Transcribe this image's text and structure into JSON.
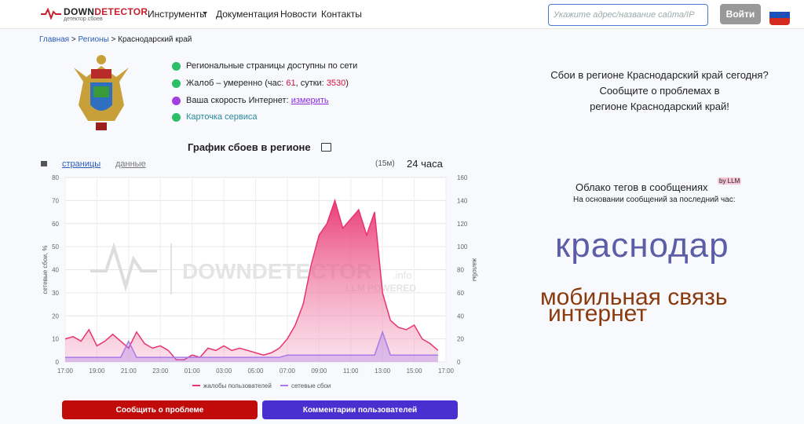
{
  "header": {
    "logo": {
      "part1": "DOWN",
      "part2": "DETECTOR",
      "tagline": "детектор сбоев"
    },
    "nav": [
      "Инструменты",
      "Документация",
      "Новости",
      "Контакты"
    ],
    "search_placeholder": "Укажите адрес/название сайта/IP",
    "login": "Войти"
  },
  "breadcrumb": [
    "Главная",
    "Регионы",
    "Краснодарский край"
  ],
  "status": {
    "available": "Региональные страницы доступны по сети",
    "complaints": {
      "prefix": "Жалоб – умеренно (час: ",
      "hour": 61,
      "mid": ", сутки: ",
      "day": 3530,
      "suffix": ")"
    },
    "speed": {
      "text": "Ваша скорость Интернет:",
      "link": "измерить"
    },
    "card": "Карточка сервиса"
  },
  "chart_panel": {
    "title": "График сбоев в регионе",
    "tabs": [
      "страницы",
      "данные"
    ],
    "interval": "(15м)",
    "range": "24 часа"
  },
  "chart_data": {
    "type": "line",
    "watermark": {
      "brand": "DOWNDETECTOR",
      "suffix": ".info",
      "tag": "LLM POWERED"
    },
    "ylabel": "сетевые сбои, %",
    "y2label": "жалобы",
    "x": [
      0,
      0.5,
      1,
      1.5,
      2,
      2.5,
      3,
      3.5,
      4,
      4.5,
      5,
      5.5,
      6,
      6.5,
      7,
      7.5,
      8,
      8.5,
      9,
      9.5,
      10,
      10.5,
      11,
      11.5,
      12,
      12.5,
      13,
      13.5,
      14,
      14.5,
      15,
      15.5,
      16,
      16.5,
      17,
      17.5,
      18,
      18.5,
      19,
      19.5,
      20,
      20.5,
      21,
      21.5,
      22,
      22.5,
      23,
      23.5
    ],
    "xlim": [
      0,
      24
    ],
    "xticks": [
      {
        "value": 0,
        "label": "17:00"
      },
      {
        "value": 2,
        "label": "19:00"
      },
      {
        "value": 4,
        "label": "21:00"
      },
      {
        "value": 6,
        "label": "23:00"
      },
      {
        "value": 8,
        "label": "01:00"
      },
      {
        "value": 10,
        "label": "03:00"
      },
      {
        "value": 12,
        "label": "05:00"
      },
      {
        "value": 14,
        "label": "07:00"
      },
      {
        "value": 16,
        "label": "09:00"
      },
      {
        "value": 18,
        "label": "11:00"
      },
      {
        "value": 20,
        "label": "13:00"
      },
      {
        "value": 22,
        "label": "15:00"
      },
      {
        "value": 24,
        "label": "17:00"
      }
    ],
    "ylim": [
      0,
      80
    ],
    "yticks": [
      0,
      10,
      20,
      30,
      40,
      50,
      60,
      70,
      80
    ],
    "y2lim": [
      0,
      160
    ],
    "y2ticks": [
      0,
      20,
      40,
      60,
      80,
      100,
      120,
      140,
      160
    ],
    "grid": true,
    "series": [
      {
        "name": "жалобы пользователей",
        "color": "#e8336f",
        "axis": "y2",
        "values": [
          20,
          22,
          18,
          28,
          14,
          18,
          24,
          18,
          12,
          26,
          16,
          12,
          14,
          10,
          2,
          2,
          6,
          4,
          12,
          10,
          14,
          10,
          12,
          10,
          8,
          6,
          8,
          12,
          20,
          32,
          50,
          84,
          110,
          120,
          140,
          116,
          124,
          132,
          110,
          130,
          60,
          36,
          30,
          28,
          32,
          20,
          16,
          10
        ]
      },
      {
        "name": "сетевые сбои",
        "color": "#a77be8",
        "axis": "y",
        "values": [
          2,
          2,
          2,
          2,
          2,
          2,
          2,
          2,
          9,
          2,
          2,
          2,
          2,
          2,
          2,
          2,
          2,
          2,
          2,
          2,
          2,
          2,
          2,
          2,
          2,
          2,
          2,
          2,
          3,
          3,
          3,
          3,
          3,
          3,
          3,
          3,
          3,
          3,
          3,
          3,
          13,
          3,
          3,
          3,
          3,
          3,
          3,
          3
        ]
      }
    ]
  },
  "buttons": [
    "Сообщить о проблеме",
    "Комментарии пользователей"
  ],
  "aside": {
    "lines": [
      "Сбои в регионе Краснодарский край сегодня?",
      "Сообщите о проблемах в",
      "регионе Краснодарский край!"
    ],
    "cloud_title": "Облако тегов в сообщениях",
    "cloud_badge": "by LLM",
    "cloud_sub": "На основании сообщений за последний час:",
    "tags": [
      "краснодар",
      "мобильная связь",
      "интернет"
    ]
  }
}
